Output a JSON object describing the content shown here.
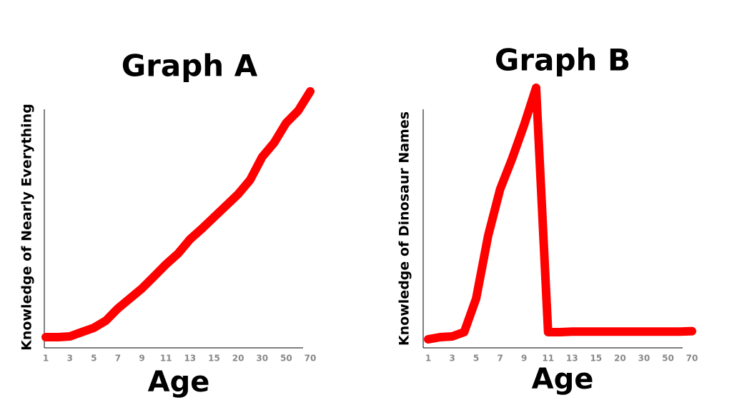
{
  "chart_data": [
    {
      "type": "line",
      "title": "Graph A",
      "x_label": "Age",
      "y_label": "Knowledge of Nearly Everything",
      "categories": [
        "1",
        null,
        "3",
        null,
        "5",
        null,
        "7",
        null,
        "9",
        null,
        "11",
        null,
        "13",
        null,
        "15",
        null,
        "20",
        null,
        "30",
        null,
        "50",
        null,
        "70"
      ],
      "values": [
        4.5,
        4.5,
        4.8,
        6.6,
        8.4,
        11.4,
        16.5,
        20.7,
        24.9,
        29.9,
        35,
        39.5,
        45.5,
        50,
        54.8,
        59.6,
        64.4,
        70.4,
        80,
        86,
        94.3,
        99.4,
        107.5
      ],
      "color": "#ff0000",
      "ylim": [
        0,
        100
      ]
    },
    {
      "type": "line",
      "title": "Graph B",
      "x_label": "Age",
      "y_label": "Knowledge of Dinosaur Names",
      "categories": [
        "1",
        null,
        "3",
        null,
        "5",
        null,
        "7",
        null,
        "9",
        null,
        "11",
        null,
        "13",
        null,
        "15",
        null,
        "20",
        null,
        "30",
        null,
        "50",
        null,
        "70"
      ],
      "values": [
        3.6,
        4.5,
        4.8,
        6.6,
        20.7,
        47,
        66.5,
        79.3,
        93.4,
        109,
        6.6,
        6.6,
        6.8,
        6.8,
        6.8,
        6.8,
        6.8,
        6.8,
        6.8,
        6.8,
        6.8,
        6.8,
        7
      ],
      "color": "#ff0000",
      "ylim": [
        0,
        100
      ]
    }
  ]
}
